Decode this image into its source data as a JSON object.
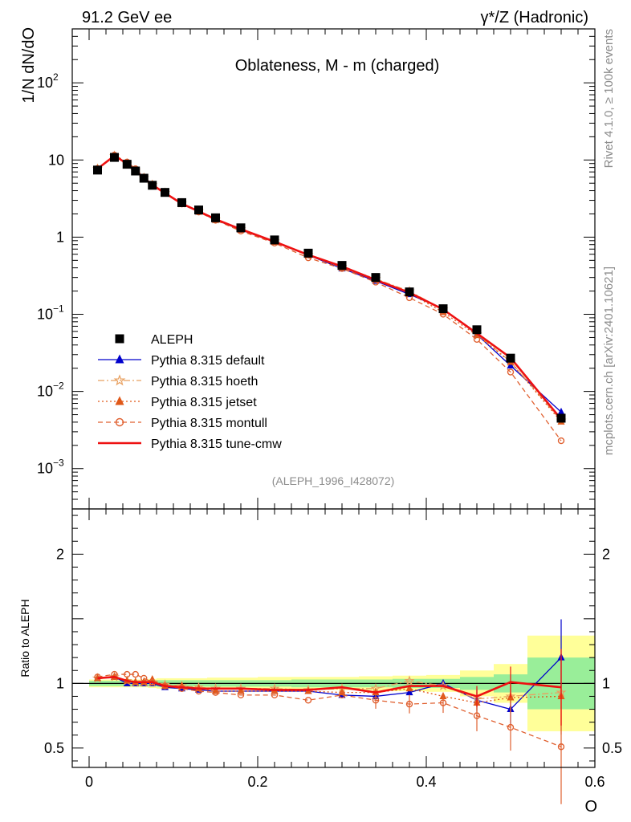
{
  "header": {
    "left": "91.2 GeV ee",
    "right": "γ*/Z (Hadronic)"
  },
  "side": {
    "rivet": "Rivet 4.1.0, ≥ 100k events",
    "mcplots": "mcplots.cern.ch [arXiv:2401.10621]"
  },
  "chart_data": {
    "type": "line",
    "title": "Oblateness, M - m (charged)",
    "reference": "(ALEPH_1996_I428072)",
    "xlabel": "O",
    "ylabel": "1/N  dN/dO",
    "ratio_ylabel": "Ratio to ALEPH",
    "xlim": [
      -0.02,
      0.6
    ],
    "ylim_log": [
      0.0003,
      500
    ],
    "ratio_ylim": [
      0.35,
      2.35
    ],
    "x_ticks": [
      {
        "v": 0,
        "label": "0"
      },
      {
        "v": 0.2,
        "label": "0.2"
      },
      {
        "v": 0.4,
        "label": "0.4"
      },
      {
        "v": 0.6,
        "label": "0.6"
      }
    ],
    "y_ticks": [
      {
        "v": 100,
        "label": "10",
        "sup": "2"
      },
      {
        "v": 10,
        "label": "10",
        "sup": ""
      },
      {
        "v": 1,
        "label": "1",
        "sup": ""
      },
      {
        "v": 0.1,
        "label": "10",
        "sup": "−1"
      },
      {
        "v": 0.01,
        "label": "10",
        "sup": "−2"
      },
      {
        "v": 0.001,
        "label": "10",
        "sup": "−3"
      }
    ],
    "ratio_ticks": [
      {
        "v": 2,
        "label": "2"
      },
      {
        "v": 1,
        "label": "1"
      },
      {
        "v": 0.5,
        "label": "0.5"
      }
    ],
    "x": [
      0.01,
      0.03,
      0.045,
      0.055,
      0.065,
      0.075,
      0.09,
      0.11,
      0.13,
      0.15,
      0.18,
      0.22,
      0.26,
      0.3,
      0.34,
      0.38,
      0.42,
      0.46,
      0.5,
      0.56
    ],
    "bin_edges": [
      0.0,
      0.02,
      0.04,
      0.05,
      0.06,
      0.07,
      0.08,
      0.1,
      0.12,
      0.14,
      0.16,
      0.2,
      0.24,
      0.28,
      0.32,
      0.36,
      0.4,
      0.44,
      0.48,
      0.52,
      0.6
    ],
    "reference_data": {
      "name": "ALEPH",
      "values": [
        7.4,
        10.8,
        8.8,
        7.2,
        5.8,
        4.7,
        3.8,
        2.8,
        2.25,
        1.78,
        1.32,
        0.92,
        0.62,
        0.43,
        0.3,
        0.195,
        0.118,
        0.063,
        0.027,
        0.0045
      ],
      "ratio_band_inner": [
        0.02,
        0.02,
        0.02,
        0.02,
        0.02,
        0.02,
        0.025,
        0.025,
        0.025,
        0.025,
        0.025,
        0.025,
        0.03,
        0.03,
        0.03,
        0.035,
        0.035,
        0.05,
        0.07,
        0.2
      ],
      "ratio_band_outer": [
        0.03,
        0.03,
        0.03,
        0.03,
        0.03,
        0.035,
        0.04,
        0.04,
        0.04,
        0.045,
        0.045,
        0.05,
        0.05,
        0.05,
        0.055,
        0.06,
        0.065,
        0.1,
        0.15,
        0.37
      ]
    },
    "series": [
      {
        "name": "Pythia 8.315 default",
        "color": "#0000cc",
        "marker": "triangle",
        "dash": "",
        "ratio": [
          1.04,
          1.05,
          1.0,
          1.0,
          1.0,
          1.0,
          0.97,
          0.96,
          0.95,
          0.94,
          0.94,
          0.94,
          0.94,
          0.91,
          0.9,
          0.93,
          1.0,
          0.87,
          0.8,
          1.2
        ]
      },
      {
        "name": "Pythia 8.315 hoeth",
        "color": "#e8a060",
        "marker": "star",
        "dash": "8,3,2,3",
        "ratio": [
          1.04,
          1.05,
          1.02,
          1.01,
          1.01,
          1.01,
          0.99,
          0.98,
          0.97,
          0.96,
          0.96,
          0.96,
          0.95,
          0.96,
          0.96,
          1.02,
          0.98,
          0.88,
          0.9,
          0.93
        ]
      },
      {
        "name": "Pythia 8.315 jetset",
        "color": "#e05818",
        "marker": "triangle",
        "dash": "2,3",
        "ratio": [
          1.04,
          1.05,
          1.02,
          1.01,
          1.01,
          1.03,
          0.98,
          0.98,
          0.96,
          0.94,
          0.94,
          0.94,
          0.94,
          0.93,
          0.93,
          0.96,
          0.9,
          0.85,
          0.89,
          0.9
        ]
      },
      {
        "name": "Pythia 8.315 montull",
        "color": "#e06030",
        "marker": "circle",
        "dash": "6,4",
        "ratio": [
          1.05,
          1.07,
          1.07,
          1.07,
          1.04,
          1.01,
          0.98,
          0.96,
          0.94,
          0.93,
          0.91,
          0.91,
          0.87,
          0.91,
          0.87,
          0.84,
          0.85,
          0.75,
          0.66,
          0.51
        ]
      },
      {
        "name": "Pythia 8.315 tune-cmw",
        "color": "#ee1111",
        "marker": "none",
        "dash": "",
        "ratio": [
          1.04,
          1.05,
          1.02,
          1.01,
          1.01,
          1.01,
          0.98,
          0.97,
          0.96,
          0.96,
          0.96,
          0.95,
          0.95,
          0.97,
          0.93,
          0.98,
          0.98,
          0.9,
          1.01,
          0.97
        ]
      }
    ],
    "legend_entries": [
      "ALEPH",
      "Pythia 8.315 default",
      "Pythia 8.315 hoeth",
      "Pythia 8.315 jetset",
      "Pythia 8.315 montull",
      "Pythia 8.315 tune-cmw"
    ],
    "legend_position": "bottom-left"
  }
}
